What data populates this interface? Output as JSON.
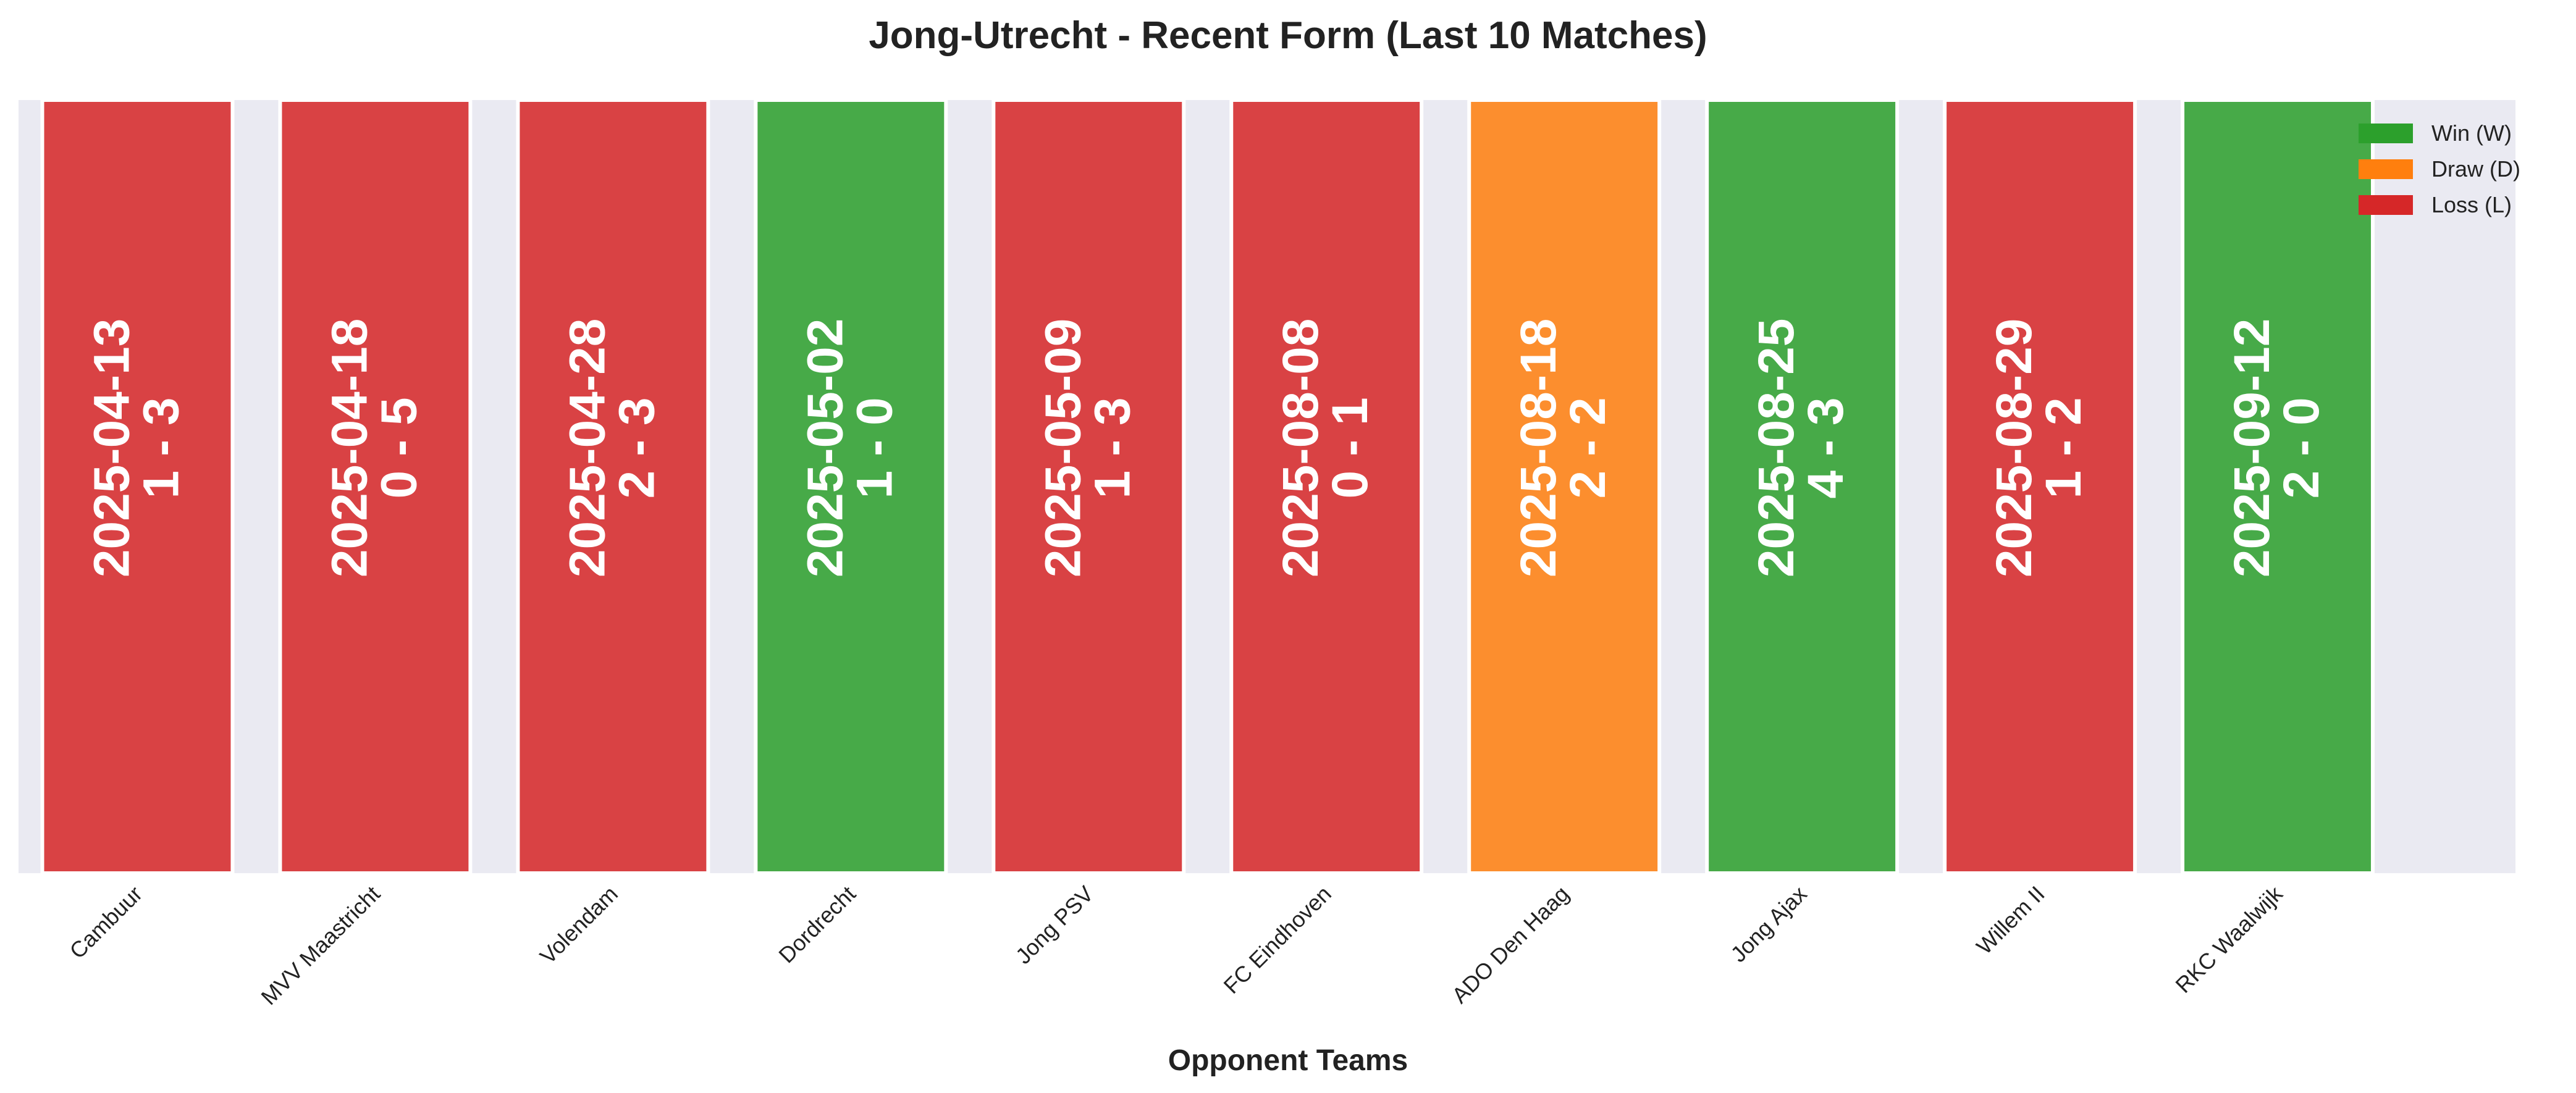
{
  "chart_data": {
    "type": "bar",
    "title": "Jong-Utrecht - Recent Form (Last 10 Matches)",
    "xlabel": "Opponent Teams",
    "ylabel": "",
    "grid": true,
    "legend_placement": "top-right",
    "categories": [
      "Cambuur",
      "MVV Maastricht",
      "Volendam",
      "Dordrecht",
      "Jong PSV",
      "FC Eindhoven",
      "ADO Den Haag",
      "Jong Ajax",
      "Willem II",
      "RKC Waalwijk"
    ],
    "values": [
      1,
      1,
      1,
      1,
      1,
      1,
      1,
      1,
      1,
      1
    ],
    "ylim": [
      0,
      1
    ],
    "dates": [
      "2025-04-13",
      "2025-04-18",
      "2025-04-28",
      "2025-05-02",
      "2025-05-09",
      "2025-08-08",
      "2025-08-18",
      "2025-08-25",
      "2025-08-29",
      "2025-09-12"
    ],
    "scores": [
      "1 - 3",
      "0 - 5",
      "2 - 3",
      "1 - 0",
      "1 - 3",
      "0 - 1",
      "2 - 2",
      "4 - 3",
      "1 - 2",
      "2 - 0"
    ],
    "results": [
      "L",
      "L",
      "L",
      "W",
      "L",
      "L",
      "D",
      "W",
      "L",
      "W"
    ],
    "legend": [
      {
        "key": "W",
        "label": "Win (W)",
        "color": "#2ca02c"
      },
      {
        "key": "D",
        "label": "Draw (D)",
        "color": "#ff7f0e"
      },
      {
        "key": "L",
        "label": "Loss (L)",
        "color": "#d62728"
      }
    ],
    "background_color": "#eaeaf2"
  }
}
